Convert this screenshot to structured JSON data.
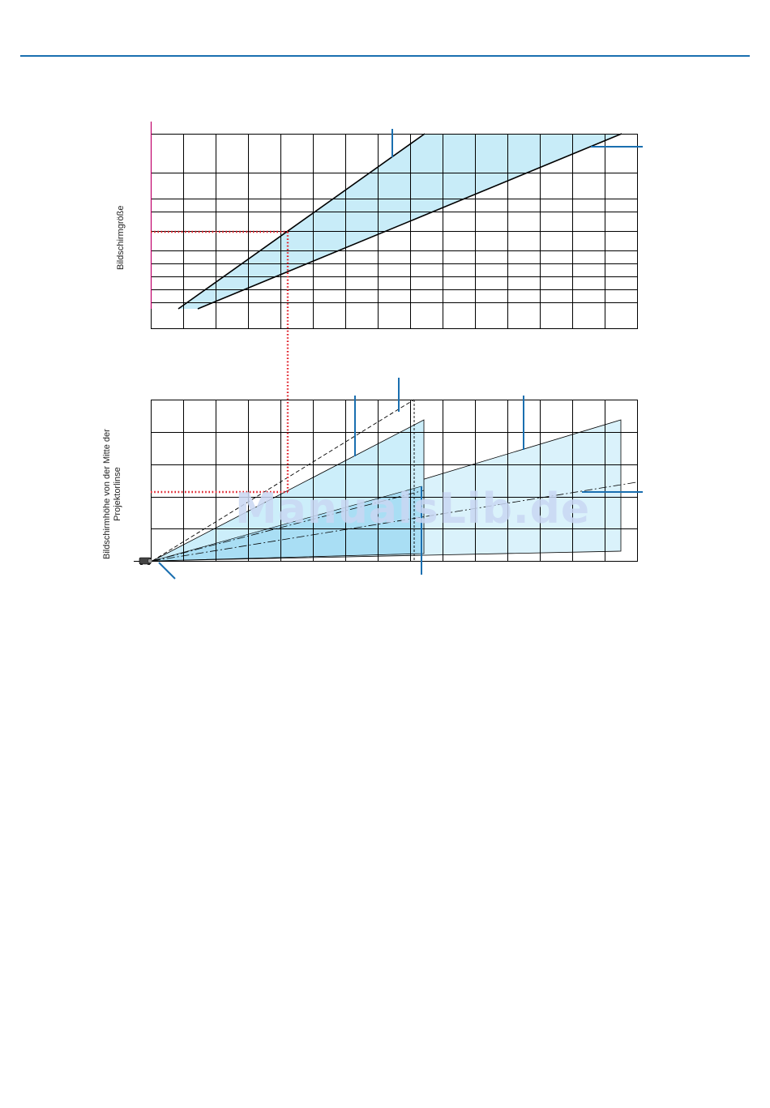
{
  "page": {
    "header_rule_color": "#1a6fb0"
  },
  "upper_chart": {
    "ylabel": "Bildschirmgröße",
    "fill_color": "#c8ecf8",
    "grid_color": "#000000",
    "axis_color": "#c0006a"
  },
  "lower_chart": {
    "ylabel_line1": "Bildschirmhöhe von der Mitte der",
    "ylabel_line2": "Projektorlinse",
    "fill_light": "#daf2fb",
    "fill_dark": "#a9def4"
  },
  "guides": {
    "dotted_color": "#e0202a",
    "callout_color": "#1a6fb0"
  },
  "watermark": {
    "text": "ManualsLib.de"
  },
  "icons": {
    "projector": "projector-icon"
  }
}
